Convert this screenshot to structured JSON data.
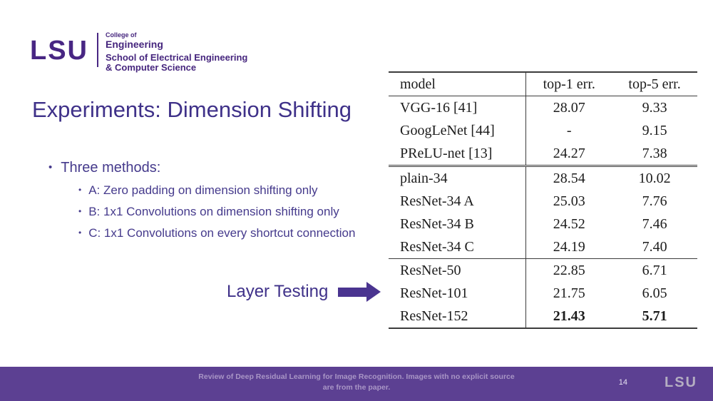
{
  "logo": {
    "mark": "LSU",
    "college_line": "College of",
    "engineering_line": "Engineering",
    "school_line": "School of Electrical Engineering",
    "cs_line": "& Computer Science"
  },
  "slide": {
    "title": "Experiments: Dimension Shifting",
    "accent_color": "#3f3189",
    "lsu_purple": "#461d7c"
  },
  "bullets": {
    "main": "Three methods:",
    "sub": [
      "A: Zero padding on dimension shifting only",
      "B: 1x1 Convolutions on dimension shifting only",
      "C: 1x1 Convolutions on every shortcut connection"
    ]
  },
  "annotation": {
    "label": "Layer Testing",
    "arrow_color": "#4a3490",
    "points_to": "ResNet-101"
  },
  "chart_data": {
    "type": "table",
    "headers": [
      "model",
      "top-1 err.",
      "top-5 err."
    ],
    "sections": [
      {
        "rows": [
          {
            "model": "VGG-16 [41]",
            "top1": "28.07",
            "top5": "9.33"
          },
          {
            "model": "GoogLeNet [44]",
            "top1": "-",
            "top5": "9.15"
          },
          {
            "model": "PReLU-net [13]",
            "top1": "24.27",
            "top5": "7.38"
          }
        ]
      },
      {
        "rows": [
          {
            "model": "plain-34",
            "top1": "28.54",
            "top5": "10.02"
          },
          {
            "model": "ResNet-34 A",
            "top1": "25.03",
            "top5": "7.76"
          },
          {
            "model": "ResNet-34 B",
            "top1": "24.52",
            "top5": "7.46"
          },
          {
            "model": "ResNet-34 C",
            "top1": "24.19",
            "top5": "7.40"
          }
        ]
      },
      {
        "rows": [
          {
            "model": "ResNet-50",
            "top1": "22.85",
            "top5": "6.71"
          },
          {
            "model": "ResNet-101",
            "top1": "21.75",
            "top5": "6.05"
          },
          {
            "model": "ResNet-152",
            "top1": "21.43",
            "top5": "5.71",
            "bold_values": true
          }
        ]
      }
    ]
  },
  "footer": {
    "caption_line1": "Review of Deep Residual Learning for Image Recognition. Images with no explicit source",
    "caption_line2": "are from the paper.",
    "page_number": "14",
    "logo": "LSU",
    "background_color": "#5c4092"
  }
}
